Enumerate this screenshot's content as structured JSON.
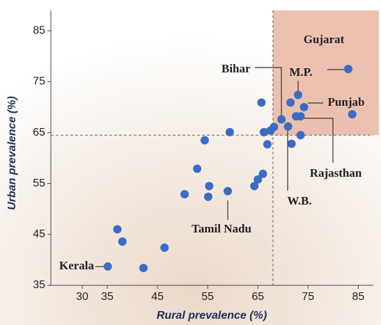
{
  "chart_data": {
    "type": "scatter",
    "x_label": "Rural prevalence (%)",
    "y_label": "Urban prevalence (%)",
    "xlim": [
      23.75,
      88
    ],
    "ylim": [
      35,
      89
    ],
    "xticks": [
      30,
      35,
      45,
      55,
      65,
      75,
      85
    ],
    "yticks": [
      35,
      45,
      55,
      65,
      75,
      85
    ],
    "reference_lines": {
      "x": 68,
      "y": 64.5
    },
    "highlight_color": "#e9b6a3",
    "color": "#3b6cc4",
    "x": [
      83,
      83.8,
      73,
      71.5,
      74.2,
      72.6,
      73.5,
      71,
      69.7,
      68.2,
      67.5,
      66.2,
      66.9,
      65.7,
      71.7,
      73.5,
      59.4,
      54.4,
      52.9,
      55.3,
      55.1,
      50.4,
      59,
      64.3,
      66,
      65,
      37,
      38,
      46.4,
      42.2,
      35.1
    ],
    "y": [
      77.5,
      68.6,
      72.4,
      70.9,
      70,
      68.2,
      68.2,
      66.2,
      67.6,
      66.1,
      65.4,
      65.1,
      62.7,
      70.9,
      62.8,
      64.5,
      65.1,
      63.5,
      57.9,
      54.5,
      52.4,
      52.9,
      53.5,
      54.5,
      56.9,
      55.8,
      46,
      43.6,
      42.4,
      38.4,
      38.7
    ],
    "annotations": [
      "Gujarat",
      "Bihar",
      "M.P.",
      "Punjab",
      "Rajasthan",
      "W.B.",
      "Tamil Nadu",
      "Kerala"
    ]
  }
}
